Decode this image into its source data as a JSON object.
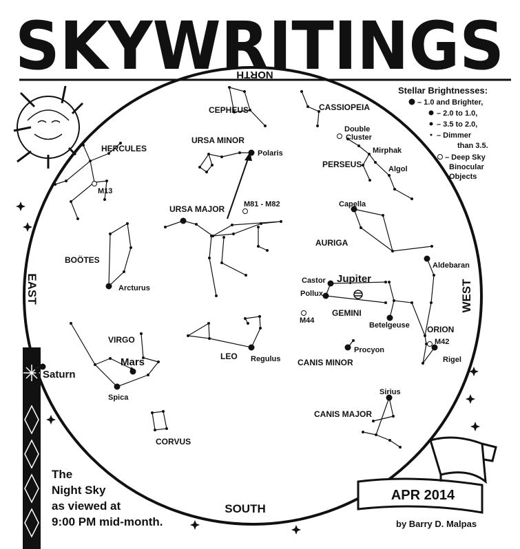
{
  "title": "SKYWRITINGS",
  "directions": {
    "north": "NORTH",
    "south": "SOUTH",
    "east": "EAST",
    "west": "WEST"
  },
  "legend": {
    "title": "Stellar Brightnesses:",
    "entries": [
      [
        "– 1.0 and Brighter,"
      ],
      [
        "– 2.0 to 1.0,"
      ],
      [
        "– 3.5 to 2.0,"
      ],
      [
        "– Dimmer",
        "than 3.5."
      ],
      [
        "– Deep Sky",
        "Binocular",
        "Objects"
      ]
    ]
  },
  "labels": [
    "CEPHEUS",
    "CASSIOPEIA",
    "URSA MINOR",
    "Polaris",
    "HERCULES",
    "M13",
    "Double",
    "Cluster",
    "Mirphak",
    "PERSEUS",
    "Algol",
    "M81 - M82",
    "URSA MAJOR",
    "Capella",
    "AURIGA",
    "BOÖTES",
    "Arcturus",
    "Aldebaran",
    "Castor",
    "Jupiter",
    "Pollux",
    "M44",
    "GEMINI",
    "Betelgeuse",
    "ORION",
    "VIRGO",
    "Mars",
    "LEO",
    "Regulus",
    "Procyon",
    "M42",
    "Saturn",
    "CANIS MINOR",
    "Rigel",
    "Spica",
    "Sirius",
    "CANIS MAJOR",
    "CORVUS"
  ],
  "caption": [
    "The",
    "Night Sky",
    "as viewed at",
    "9:00 PM mid-month."
  ],
  "date": "APR 2014",
  "author": "by Barry D. Malpas"
}
